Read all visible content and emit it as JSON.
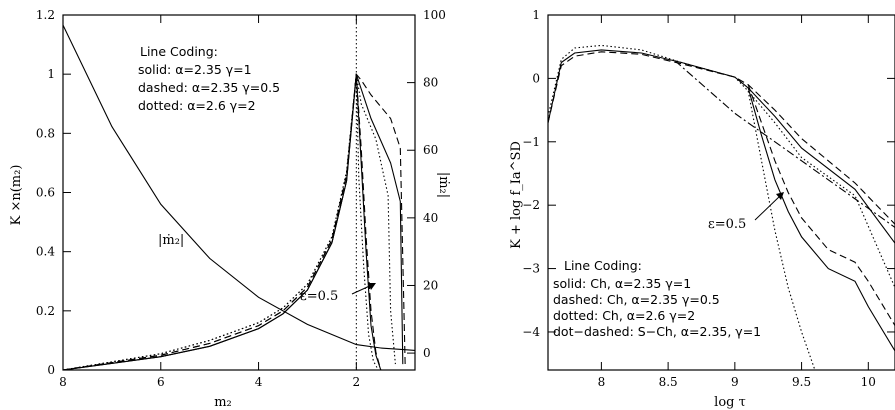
{
  "chart_data": [
    {
      "type": "line",
      "xlabel": "m₂",
      "ylabel": "K ×n(m₂)",
      "y2label": "|ṁ₂|",
      "xlim": [
        8,
        0.8
      ],
      "ylim": [
        0,
        1.2
      ],
      "y2lim": [
        -5,
        100
      ],
      "xticks": [
        "8",
        "6",
        "4",
        "2"
      ],
      "yticks": [
        "0",
        "0.2",
        "0.4",
        "0.6",
        "0.8",
        "1",
        "1.2"
      ],
      "y2ticks": [
        "0",
        "20",
        "40",
        "60",
        "80",
        "100"
      ],
      "legend_title": "Line Coding:",
      "legend_lines": [
        "solid:  α=2.35  γ=1",
        "dashed: α=2.35  γ=0.5",
        "dotted:  α=2.6   γ=2"
      ],
      "annotations": [
        "|ṁ₂|",
        "ε=0.5"
      ],
      "vline_x": 2,
      "series": [
        {
          "style": "solid",
          "axis": "right",
          "x": [
            8,
            7,
            6,
            5,
            4,
            3,
            2,
            1.5,
            1,
            0.8
          ],
          "y": [
            97,
            67,
            44,
            28,
            16.5,
            8.5,
            2.5,
            1.5,
            1,
            0.8
          ]
        },
        {
          "style": "solid",
          "x": [
            8,
            6,
            5,
            4,
            3.5,
            3,
            2.5,
            2.2,
            2,
            1.9,
            1.7,
            1.3,
            1.1,
            1.05
          ],
          "y": [
            0,
            0.045,
            0.08,
            0.14,
            0.19,
            0.27,
            0.43,
            0.64,
            1,
            0.95,
            0.85,
            0.7,
            0.57,
            0.02
          ]
        },
        {
          "style": "dashed",
          "x": [
            8,
            6,
            5,
            4,
            3.5,
            3,
            2.5,
            2.2,
            2,
            1.9,
            1.7,
            1.3,
            1.1,
            1.0
          ],
          "y": [
            0,
            0.05,
            0.09,
            0.15,
            0.2,
            0.28,
            0.44,
            0.66,
            1,
            0.98,
            0.93,
            0.85,
            0.75,
            0.01
          ]
        },
        {
          "style": "dotted",
          "x": [
            8,
            6,
            5,
            4,
            3.5,
            3,
            2.5,
            2.2,
            2,
            1.9,
            1.6,
            1.35,
            1.3,
            1.2
          ],
          "y": [
            0,
            0.055,
            0.1,
            0.16,
            0.21,
            0.29,
            0.45,
            0.67,
            1,
            0.9,
            0.78,
            0.59,
            0.2,
            0.02
          ]
        },
        {
          "style": "solid",
          "x": [
            8,
            6,
            5,
            4,
            3.5,
            3,
            2.5,
            2.2,
            2,
            1.9,
            1.8,
            1.7,
            1.6,
            1.5
          ],
          "y": [
            0,
            0.045,
            0.08,
            0.14,
            0.19,
            0.27,
            0.43,
            0.64,
            1,
            0.7,
            0.4,
            0.15,
            0.05,
            0.0
          ]
        },
        {
          "style": "dashed",
          "x": [
            8,
            6,
            5,
            4,
            3.5,
            3,
            2.5,
            2.2,
            2,
            1.9,
            1.8,
            1.7,
            1.6,
            1.5
          ],
          "y": [
            0,
            0.05,
            0.09,
            0.15,
            0.2,
            0.28,
            0.44,
            0.66,
            1,
            0.75,
            0.45,
            0.2,
            0.06,
            0.0
          ]
        },
        {
          "style": "dotted",
          "x": [
            8,
            6,
            5,
            4,
            3.5,
            3,
            2.5,
            2.2,
            2,
            1.95,
            1.85,
            1.75,
            1.65,
            1.55
          ],
          "y": [
            0,
            0.055,
            0.1,
            0.16,
            0.21,
            0.29,
            0.45,
            0.67,
            1,
            0.65,
            0.35,
            0.12,
            0.03,
            0.0
          ]
        }
      ]
    },
    {
      "type": "line",
      "xlabel": "log τ",
      "ylabel": "K + log f_Ia^SD",
      "xlim": [
        7.6,
        10.2
      ],
      "ylim": [
        -4.6,
        1
      ],
      "xticks": [
        "8",
        "8.5",
        "9",
        "9.5",
        "10"
      ],
      "yticks": [
        "1",
        "0",
        "−1",
        "−2",
        "−3",
        "−4"
      ],
      "legend_title": "Line Coding:",
      "legend_lines": [
        "solid:    Ch,  α=2.35  γ=1",
        "dashed: Ch,  α=2.35  γ=0.5",
        "dotted:  Ch,  α=2.6   γ=2",
        "dot−dashed:  S−Ch,  α=2.35,  γ=1"
      ],
      "annotations": [
        "ε=0.5"
      ],
      "series": [
        {
          "style": "solid",
          "x": [
            7.6,
            7.7,
            7.8,
            8,
            8.3,
            8.6,
            9,
            9.1,
            9.3,
            9.5,
            9.9,
            10.2
          ],
          "y": [
            -0.7,
            0.25,
            0.4,
            0.45,
            0.4,
            0.25,
            0.02,
            -0.15,
            -0.6,
            -1.1,
            -1.75,
            -2.6
          ]
        },
        {
          "style": "dashed",
          "x": [
            7.6,
            7.7,
            7.8,
            8,
            8.3,
            8.6,
            9,
            9.1,
            9.3,
            9.5,
            9.9,
            10.2
          ],
          "y": [
            -0.7,
            0.2,
            0.35,
            0.42,
            0.38,
            0.23,
            0.02,
            -0.1,
            -0.5,
            -0.95,
            -1.65,
            -2.3
          ]
        },
        {
          "style": "dotted",
          "x": [
            7.6,
            7.7,
            7.8,
            8,
            8.3,
            8.6,
            9,
            9.1,
            9.3,
            9.5,
            9.9,
            10.2
          ],
          "y": [
            -0.6,
            0.3,
            0.48,
            0.52,
            0.45,
            0.25,
            0.02,
            -0.2,
            -0.7,
            -1.25,
            -1.85,
            -3.3
          ]
        },
        {
          "style": "solid",
          "x": [
            9.1,
            9.2,
            9.3,
            9.4,
            9.5,
            9.7,
            9.9,
            10.0,
            10.2
          ],
          "y": [
            -0.15,
            -0.9,
            -1.6,
            -2.1,
            -2.5,
            -3.0,
            -3.2,
            -3.6,
            -4.3
          ]
        },
        {
          "style": "dashed",
          "x": [
            9.1,
            9.2,
            9.3,
            9.4,
            9.5,
            9.7,
            9.9,
            10.0,
            10.2
          ],
          "y": [
            -0.1,
            -0.7,
            -1.3,
            -1.8,
            -2.2,
            -2.7,
            -2.9,
            -3.2,
            -3.9
          ]
        },
        {
          "style": "dotted",
          "x": [
            9.1,
            9.2,
            9.3,
            9.4,
            9.5,
            9.6
          ],
          "y": [
            -0.2,
            -1.3,
            -2.4,
            -3.3,
            -4.0,
            -4.6
          ]
        },
        {
          "style": "dot-dashed",
          "x": [
            8.55,
            9,
            9.5,
            10,
            10.2
          ],
          "y": [
            0.28,
            -0.55,
            -1.3,
            -2.05,
            -2.35
          ]
        }
      ]
    }
  ]
}
